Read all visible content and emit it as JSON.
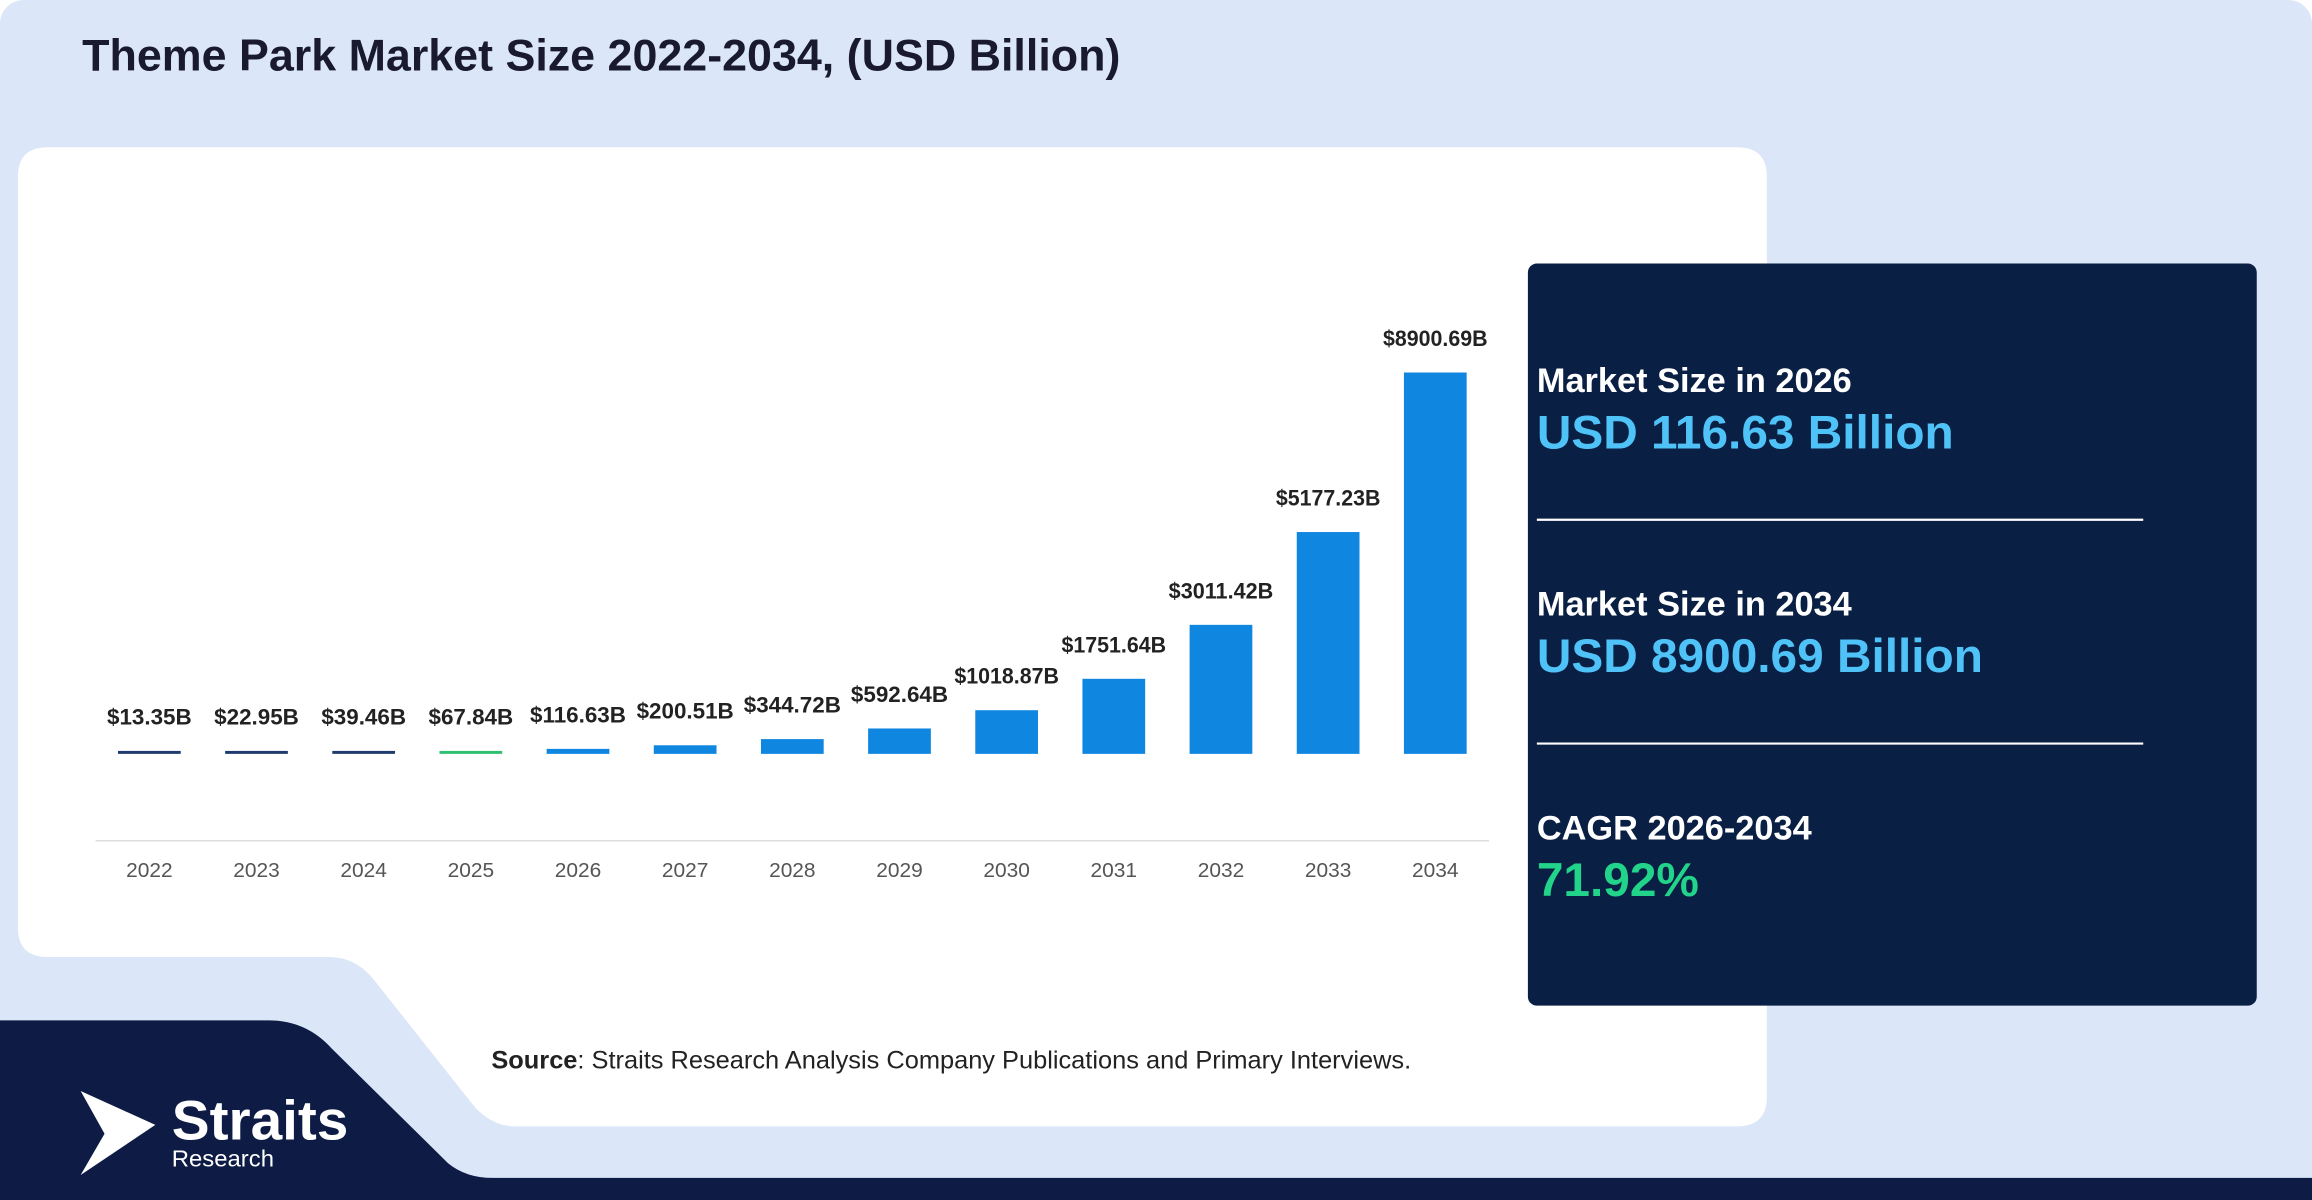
{
  "header": {
    "title": "Theme Park Market Size 2022-2034, (USD Billion)"
  },
  "chart_data": {
    "type": "bar",
    "categories": [
      "2022",
      "2023",
      "2024",
      "2025",
      "2026",
      "2027",
      "2028",
      "2029",
      "2030",
      "2031",
      "2032",
      "2033",
      "2034"
    ],
    "values": [
      13.35,
      22.95,
      39.46,
      67.84,
      116.63,
      200.51,
      344.72,
      592.64,
      1018.87,
      1751.64,
      3011.42,
      5177.23,
      8900.69
    ],
    "value_labels": [
      "$13.35B",
      "$22.95B",
      "$39.46B",
      "$67.84B",
      "$116.63B",
      "$200.51B",
      "$344.72B",
      "$592.64B",
      "$1018.87B",
      "$1751.64B",
      "$3011.42B",
      "$5177.23B",
      "$8900.69B"
    ],
    "colors": [
      "#1f3a6e",
      "#1f3a6e",
      "#1f3a6e",
      "#2fbf71",
      "#0f86e0",
      "#0f86e0",
      "#0f86e0",
      "#0f86e0",
      "#0f86e0",
      "#0f86e0",
      "#0f86e0",
      "#0f86e0",
      "#0f86e0"
    ]
  },
  "summary": [
    {
      "label": "Market Size in 2026",
      "value": "USD 116.63 Billion"
    },
    {
      "label": "Market Size in 2034",
      "value": "USD 8900.69 Billion"
    },
    {
      "label": "CAGR 2026-2034",
      "value": "71.92%"
    }
  ],
  "source": {
    "label": "Source",
    "text": ": Straits Research Analysis Company Publications and Primary Interviews."
  },
  "logo": {
    "name": "Straits",
    "sub": "Research"
  }
}
